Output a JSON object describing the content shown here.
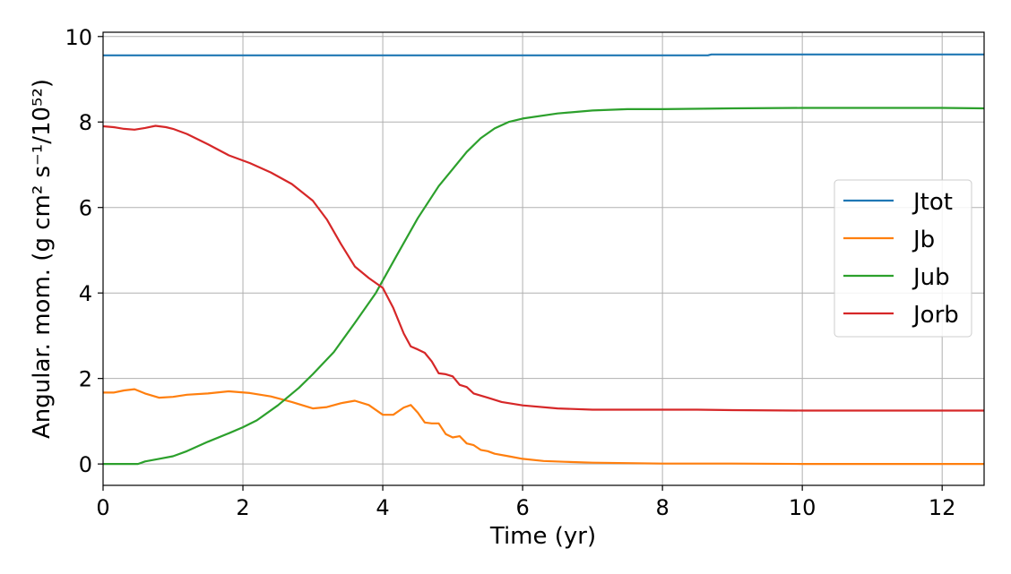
{
  "chart_data": {
    "type": "line",
    "xlabel": "Time (yr)",
    "ylabel": "Angular. mom. (g cm² s⁻¹/10⁵²)",
    "xlim": [
      0,
      12.6
    ],
    "ylim": [
      -0.5,
      10.1
    ],
    "xticks": [
      0,
      2,
      4,
      6,
      8,
      10,
      12
    ],
    "yticks": [
      0,
      2,
      4,
      6,
      8,
      10
    ],
    "grid": true,
    "legend_position": "center-right",
    "series": [
      {
        "name": "Jtot",
        "color": "#1f77b4",
        "x": [
          0,
          2,
          4,
          6,
          8,
          8.65,
          8.7,
          10,
          12,
          12.6
        ],
        "y": [
          9.56,
          9.56,
          9.56,
          9.56,
          9.56,
          9.56,
          9.58,
          9.58,
          9.58,
          9.58
        ]
      },
      {
        "name": "Jb",
        "color": "#ff7f0e",
        "x": [
          0,
          0.15,
          0.3,
          0.45,
          0.6,
          0.8,
          1.0,
          1.2,
          1.5,
          1.8,
          2.1,
          2.4,
          2.7,
          3.0,
          3.2,
          3.4,
          3.6,
          3.8,
          4.0,
          4.15,
          4.3,
          4.4,
          4.5,
          4.6,
          4.7,
          4.8,
          4.9,
          5.0,
          5.1,
          5.2,
          5.3,
          5.4,
          5.5,
          5.6,
          5.8,
          6.0,
          6.3,
          6.6,
          7.0,
          7.5,
          8.0,
          8.5,
          9.0,
          10.0,
          11.0,
          12.0,
          12.6
        ],
        "y": [
          1.67,
          1.67,
          1.72,
          1.75,
          1.65,
          1.55,
          1.57,
          1.62,
          1.65,
          1.7,
          1.66,
          1.58,
          1.45,
          1.3,
          1.33,
          1.42,
          1.48,
          1.38,
          1.15,
          1.15,
          1.32,
          1.38,
          1.2,
          0.97,
          0.95,
          0.95,
          0.7,
          0.62,
          0.65,
          0.48,
          0.44,
          0.33,
          0.3,
          0.24,
          0.18,
          0.12,
          0.07,
          0.05,
          0.03,
          0.02,
          0.01,
          0.01,
          0.01,
          0.0,
          0.0,
          0.0,
          0.0
        ]
      },
      {
        "name": "Jub",
        "color": "#2ca02c",
        "x": [
          0,
          0.3,
          0.5,
          0.6,
          0.8,
          1.0,
          1.2,
          1.5,
          1.8,
          2.0,
          2.2,
          2.5,
          2.8,
          3.0,
          3.3,
          3.6,
          3.9,
          4.2,
          4.5,
          4.8,
          5.0,
          5.2,
          5.4,
          5.6,
          5.8,
          6.0,
          6.5,
          7.0,
          7.5,
          8.0,
          8.6,
          9.0,
          10.0,
          11.0,
          12.0,
          12.6
        ],
        "y": [
          0.0,
          0.0,
          0.0,
          0.06,
          0.12,
          0.18,
          0.3,
          0.52,
          0.72,
          0.86,
          1.02,
          1.37,
          1.78,
          2.1,
          2.62,
          3.3,
          4.0,
          4.88,
          5.75,
          6.5,
          6.9,
          7.3,
          7.62,
          7.85,
          8.0,
          8.08,
          8.2,
          8.27,
          8.3,
          8.3,
          8.31,
          8.32,
          8.33,
          8.33,
          8.33,
          8.32
        ]
      },
      {
        "name": "Jorb",
        "color": "#d62728",
        "x": [
          0,
          0.15,
          0.3,
          0.45,
          0.6,
          0.75,
          0.9,
          1.0,
          1.2,
          1.5,
          1.8,
          2.1,
          2.4,
          2.7,
          3.0,
          3.2,
          3.4,
          3.6,
          3.8,
          4.0,
          4.15,
          4.3,
          4.4,
          4.5,
          4.6,
          4.7,
          4.8,
          4.9,
          5.0,
          5.1,
          5.2,
          5.3,
          5.5,
          5.7,
          6.0,
          6.5,
          7.0,
          7.5,
          8.0,
          8.5,
          9.0,
          10.0,
          11.0,
          12.0,
          12.6
        ],
        "y": [
          7.9,
          7.88,
          7.84,
          7.82,
          7.86,
          7.91,
          7.88,
          7.84,
          7.72,
          7.48,
          7.22,
          7.04,
          6.82,
          6.55,
          6.16,
          5.72,
          5.15,
          4.62,
          4.35,
          4.12,
          3.65,
          3.05,
          2.75,
          2.68,
          2.6,
          2.4,
          2.12,
          2.1,
          2.05,
          1.85,
          1.8,
          1.65,
          1.55,
          1.45,
          1.37,
          1.3,
          1.27,
          1.27,
          1.27,
          1.27,
          1.26,
          1.25,
          1.25,
          1.25,
          1.25
        ]
      }
    ]
  }
}
